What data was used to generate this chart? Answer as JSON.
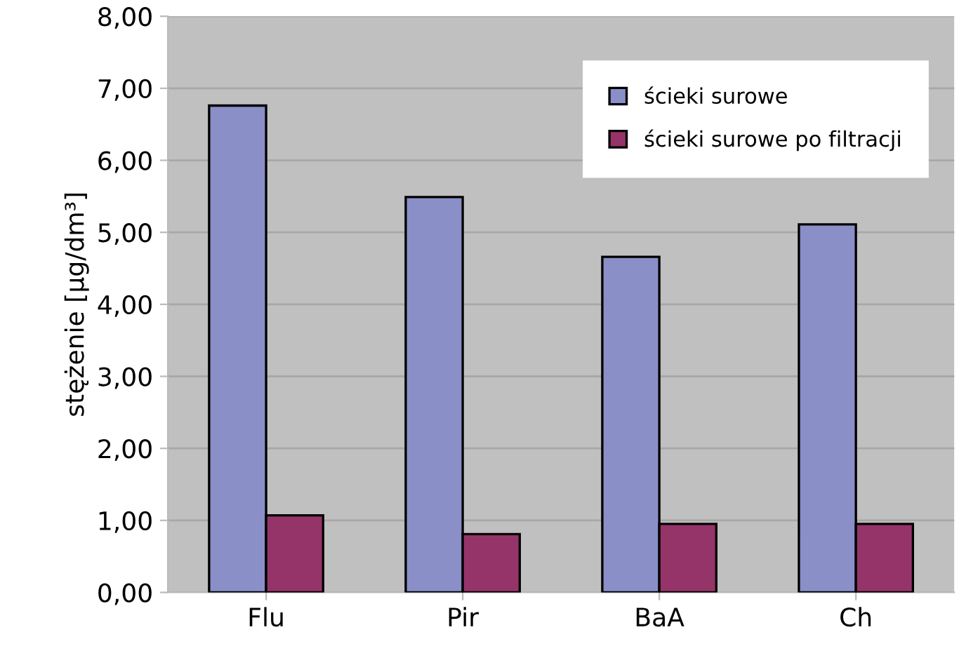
{
  "chart_data": {
    "type": "bar",
    "ylabel": "stężenie [µg/dm³]",
    "categories": [
      "Flu",
      "Pir",
      "BaA",
      "Ch"
    ],
    "series": [
      {
        "name": "ścieki surowe",
        "color": "#8a8fc8",
        "values": [
          6.76,
          5.49,
          4.66,
          5.11
        ]
      },
      {
        "name": "ścieki surowe po filtracji",
        "color": "#953468",
        "values": [
          1.07,
          0.81,
          0.95,
          0.95
        ]
      }
    ],
    "ylim": [
      0,
      8
    ],
    "yticks": [
      {
        "value": 0,
        "label": "0,00"
      },
      {
        "value": 1,
        "label": "1,00"
      },
      {
        "value": 2,
        "label": "2,00"
      },
      {
        "value": 3,
        "label": "3,00"
      },
      {
        "value": 4,
        "label": "4,00"
      },
      {
        "value": 5,
        "label": "5,00"
      },
      {
        "value": 6,
        "label": "6,00"
      },
      {
        "value": 7,
        "label": "7,00"
      },
      {
        "value": 8,
        "label": "8,00"
      }
    ],
    "grid": "y",
    "legend": "top right"
  }
}
